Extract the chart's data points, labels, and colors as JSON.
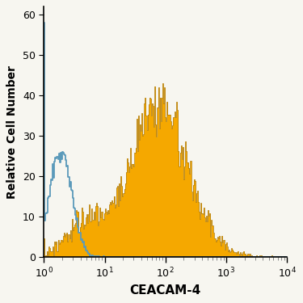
{
  "title": "",
  "xlabel": "CEACAM-4",
  "ylabel": "Relative Cell Number",
  "xlim_log": [
    1,
    10000
  ],
  "ylim": [
    0,
    62
  ],
  "yticks": [
    0,
    10,
    20,
    30,
    40,
    50,
    60
  ],
  "blue_color": "#5b9aba",
  "orange_color": "#f5a800",
  "orange_edge_color": "#b07800",
  "blue_edge_color": "#4a85aa",
  "background_color": "#f7f6f0",
  "figsize": [
    3.75,
    3.75
  ],
  "dpi": 100
}
